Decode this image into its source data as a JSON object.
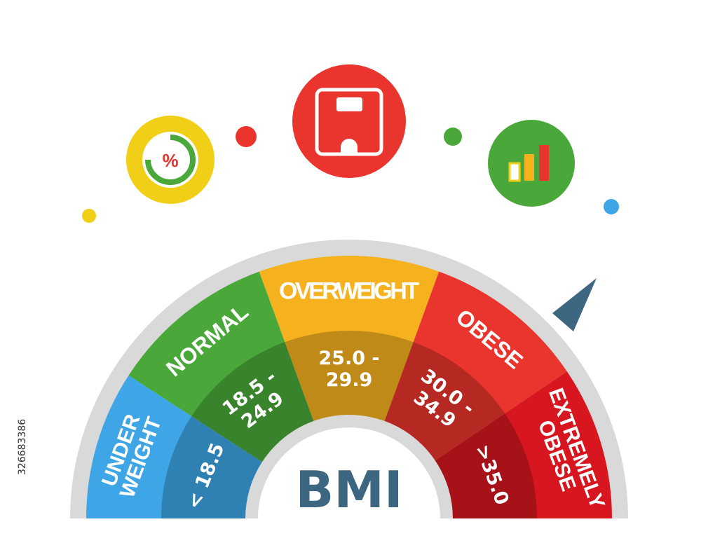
{
  "title": "BMI",
  "colors": {
    "underweight": "#3ea6e6",
    "normal": "#4aa83a",
    "overweight": "#f6b11f",
    "obese": "#e9352d",
    "extremely_obese": "#d7161f",
    "title": "#3d6680",
    "needle": "#3d6680",
    "frame": "#d9d9d9"
  },
  "categories": [
    {
      "key": "underweight",
      "label_lines": [
        "UNDER",
        "WEIGHT"
      ],
      "range_lines": [
        "< 18.5"
      ]
    },
    {
      "key": "normal",
      "label_lines": [
        "NORMAL"
      ],
      "range_lines": [
        "18.5 -",
        "24.9"
      ]
    },
    {
      "key": "overweight",
      "label_lines": [
        "OVERWEIGHT"
      ],
      "range_lines": [
        "25.0 -",
        "29.9"
      ]
    },
    {
      "key": "obese",
      "label_lines": [
        "OBESE"
      ],
      "range_lines": [
        "30.0 -",
        "34.9"
      ]
    },
    {
      "key": "extremely_obese",
      "label_lines": [
        "EXTREMELY",
        "OBESE"
      ],
      "range_lines": [
        ">35.0"
      ]
    }
  ],
  "icons": {
    "percent_icon": {
      "symbol": "%",
      "color": "#f1cf19"
    },
    "scale_icon": {
      "color": "#e9352d"
    },
    "bar_chart_icon": {
      "color": "#4aa83a"
    }
  },
  "dots": [
    {
      "name": "yellow-dot",
      "color": "#f1cf19"
    },
    {
      "name": "red-dot",
      "color": "#e9352d"
    },
    {
      "name": "green-dot",
      "color": "#4aa83a"
    },
    {
      "name": "blue-dot",
      "color": "#3ea6e6"
    }
  ],
  "side_id": "326683386"
}
